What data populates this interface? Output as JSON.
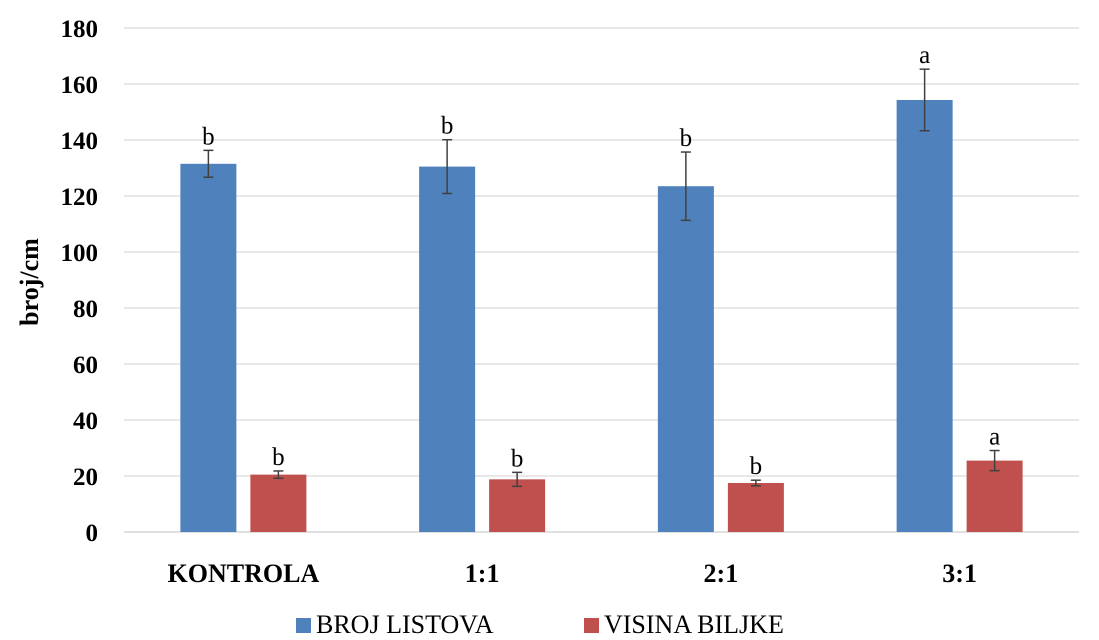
{
  "chart_data": {
    "type": "bar",
    "title": "",
    "xlabel": "",
    "ylabel": "broj/cm",
    "ylim": [
      0,
      180
    ],
    "yticks": [
      0,
      20,
      40,
      60,
      80,
      100,
      120,
      140,
      160,
      180
    ],
    "grid": true,
    "legend_position": "bottom",
    "categories": [
      "KONTROLA",
      "1:1",
      "2:1",
      "3:1"
    ],
    "series": [
      {
        "name": "BROJ LISTOVA",
        "color": "#4F81BD",
        "values": [
          131.5,
          130.5,
          123.5,
          154.3
        ],
        "errors": [
          4.8,
          9.6,
          12.2,
          11.0
        ],
        "labels": [
          "b",
          "b",
          "b",
          "a"
        ]
      },
      {
        "name": "VISINA BILJKE",
        "color": "#C0504D",
        "values": [
          20.5,
          18.8,
          17.5,
          25.5
        ],
        "errors": [
          1.3,
          2.5,
          1.0,
          3.6
        ],
        "labels": [
          "b",
          "b",
          "b",
          "a"
        ]
      }
    ]
  }
}
